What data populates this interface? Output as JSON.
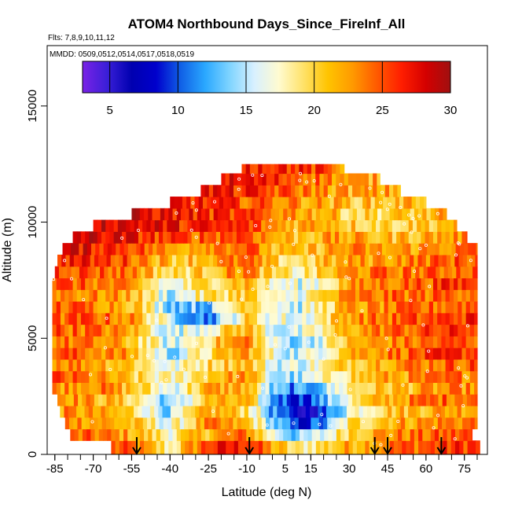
{
  "chart_data": {
    "type": "heatmap",
    "title": "ATOM4 Northbound Days_Since_FireInf_All",
    "flights_label": "Flts: 7,8,9,10,11,12",
    "mmdd_label": "MMDD: 0509,0512,0514,0517,0518,0519",
    "xlabel": "Latitude (deg N)",
    "ylabel": "Altitude (m)",
    "xlim": [
      -88,
      84
    ],
    "ylim": [
      0,
      17600
    ],
    "x_ticks": [
      -85,
      -70,
      -55,
      -40,
      -25,
      -10,
      5,
      15,
      30,
      45,
      60,
      75
    ],
    "x_tick_labels": [
      "-85",
      "-70",
      "-55",
      "-40",
      "-25",
      "-10",
      "5",
      "15",
      "30",
      "45",
      "60",
      "75"
    ],
    "y_ticks": [
      0,
      5000,
      10000,
      15000
    ],
    "y_tick_labels": [
      "0",
      "5000",
      "10000",
      "15000"
    ],
    "colorbar": {
      "range": [
        3,
        30
      ],
      "ticks": [
        5,
        10,
        15,
        20,
        25,
        30
      ],
      "tick_labels": [
        "5",
        "10",
        "15",
        "20",
        "25",
        "30"
      ],
      "colors": [
        "#7a22e6",
        "#3a1fd8",
        "#0000b0",
        "#0000cc",
        "#1060e6",
        "#2aa8ff",
        "#7fd4ff",
        "#d8f0ff",
        "#fffbd0",
        "#ffe26a",
        "#ffc400",
        "#ff9a00",
        "#ff5a00",
        "#ff1e00",
        "#d40000",
        "#a01010"
      ]
    },
    "arrows_latitude": [
      -53,
      -9,
      40,
      45,
      66
    ],
    "altitude_layers_m": [
      0,
      600,
      1100,
      1600,
      2100,
      2600,
      3100,
      3600,
      4100,
      4600,
      5100,
      5600,
      6100,
      6600,
      7100,
      7600,
      8100,
      8600,
      9100,
      9600,
      10100,
      10600,
      11100,
      11600,
      12100
    ],
    "layer_lat_extent": [
      [
        -63,
        81
      ],
      [
        -79,
        78
      ],
      [
        -81,
        80
      ],
      [
        -83,
        80
      ],
      [
        -84,
        80
      ],
      [
        -86,
        80
      ],
      [
        -86,
        80
      ],
      [
        -86,
        80
      ],
      [
        -86,
        80
      ],
      [
        -86,
        80
      ],
      [
        -86,
        80
      ],
      [
        -86,
        80
      ],
      [
        -86,
        80
      ],
      [
        -86,
        80
      ],
      [
        -86,
        80
      ],
      [
        -85,
        80
      ],
      [
        -84,
        80
      ],
      [
        -82,
        80
      ],
      [
        -78,
        76
      ],
      [
        -70,
        72
      ],
      [
        -55,
        68
      ],
      [
        -40,
        60
      ],
      [
        -28,
        50
      ],
      [
        -20,
        42
      ],
      [
        -12,
        28
      ]
    ],
    "value_anchors_lat": [
      -85,
      -70,
      -55,
      -40,
      -25,
      -10,
      0,
      10,
      20,
      30,
      45,
      60,
      75
    ],
    "value_anchors": [
      [
        26,
        25,
        24,
        18,
        26,
        27,
        22,
        18,
        20,
        22,
        24,
        25,
        26
      ],
      [
        23,
        24,
        22,
        18,
        22,
        24,
        17,
        13,
        16,
        21,
        23,
        24,
        25
      ],
      [
        24,
        23,
        21,
        16,
        23,
        21,
        14,
        8,
        11,
        19,
        22,
        23,
        24
      ],
      [
        23,
        22,
        20,
        14,
        22,
        20,
        12,
        6,
        9,
        17,
        21,
        22,
        23
      ],
      [
        24,
        22,
        20,
        13,
        21,
        21,
        12,
        9,
        12,
        18,
        22,
        24,
        25
      ],
      [
        23,
        24,
        21,
        16,
        22,
        22,
        13,
        11,
        14,
        19,
        21,
        22,
        23
      ],
      [
        25,
        23,
        20,
        17,
        21,
        23,
        15,
        14,
        17,
        20,
        22,
        23,
        24
      ],
      [
        24,
        23,
        21,
        16,
        20,
        22,
        16,
        16,
        18,
        21,
        23,
        24,
        25
      ],
      [
        25,
        24,
        22,
        14,
        19,
        23,
        17,
        15,
        18,
        22,
        24,
        25,
        26
      ],
      [
        24,
        23,
        21,
        15,
        20,
        24,
        16,
        14,
        17,
        21,
        23,
        24,
        25
      ],
      [
        25,
        24,
        22,
        15,
        18,
        22,
        16,
        15,
        18,
        22,
        24,
        25,
        26
      ],
      [
        24,
        25,
        23,
        15,
        11,
        20,
        17,
        16,
        19,
        23,
        24,
        25,
        26
      ],
      [
        25,
        24,
        22,
        14,
        13,
        22,
        18,
        15,
        19,
        22,
        23,
        24,
        25
      ],
      [
        24,
        23,
        22,
        15,
        19,
        21,
        16,
        17,
        20,
        23,
        24,
        24,
        25
      ],
      [
        25,
        24,
        22,
        16,
        20,
        22,
        17,
        16,
        18,
        22,
        24,
        25,
        26
      ],
      [
        26,
        25,
        24,
        19,
        21,
        24,
        19,
        18,
        20,
        23,
        24,
        24,
        25
      ],
      [
        27,
        26,
        25,
        21,
        22,
        24,
        20,
        19,
        21,
        22,
        23,
        24,
        25
      ],
      [
        28,
        27,
        26,
        22,
        24,
        25,
        21,
        20,
        22,
        23,
        22,
        23,
        24
      ],
      [
        29,
        28,
        27,
        25,
        25,
        26,
        22,
        21,
        22,
        22,
        21,
        22,
        23
      ],
      [
        29,
        29,
        28,
        27,
        26,
        26,
        23,
        22,
        23,
        21,
        20,
        21,
        22
      ],
      [
        29,
        29,
        28,
        27,
        26,
        25,
        24,
        23,
        22,
        20,
        20,
        21,
        22
      ],
      [
        29,
        28,
        28,
        27,
        26,
        25,
        24,
        23,
        22,
        21,
        21,
        22,
        22
      ],
      [
        28,
        28,
        28,
        27,
        27,
        26,
        25,
        24,
        23,
        22,
        22,
        22,
        22
      ],
      [
        28,
        28,
        28,
        28,
        27,
        27,
        26,
        25,
        24,
        22,
        22,
        22,
        22
      ],
      [
        28,
        28,
        28,
        28,
        28,
        27,
        27,
        26,
        25,
        22,
        21,
        21,
        21
      ]
    ]
  }
}
